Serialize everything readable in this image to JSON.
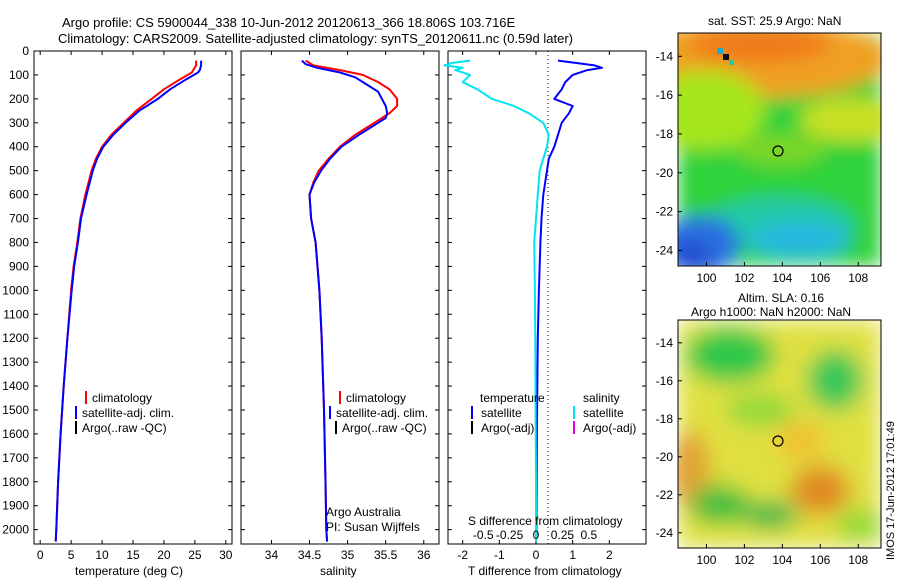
{
  "header": {
    "line1": "Argo profile: CS 5900044_338 10-Jun-2012 20120613_366 18.806S 103.716E",
    "line2": "Climatology: CARS2009. Satellite-adjusted climatology: synTS_20120611.nc (0.59d later)"
  },
  "side_stamp": "IMOS 17-Jun-2012 17:01:49",
  "colors": {
    "climatology": "#ff0000",
    "satellite": "#0000ff",
    "argo": "#000000",
    "cyan": "#00e5ee",
    "magenta": "#e000e0"
  },
  "depth_ticks": [
    0,
    100,
    200,
    300,
    400,
    500,
    600,
    700,
    800,
    900,
    1000,
    1100,
    1200,
    1300,
    1400,
    1500,
    1600,
    1700,
    1800,
    1900,
    2000
  ],
  "chart_data": [
    {
      "type": "line",
      "xlabel": "temperature (deg C)",
      "xlim": [
        -1,
        31
      ],
      "xticks": [
        0,
        5,
        10,
        15,
        20,
        25,
        30
      ],
      "ylim": [
        0,
        2060
      ],
      "legend": [
        "climatology",
        "satellite-adj. clim.",
        "Argo(..raw -QC)"
      ],
      "series": [
        {
          "name": "climatology",
          "color": "#ff0000",
          "depth": [
            40,
            60,
            90,
            120,
            160,
            200,
            250,
            300,
            350,
            400,
            450,
            500,
            600,
            700,
            800,
            900,
            1000,
            1200,
            1400,
            1600,
            1800,
            2000,
            2050
          ],
          "values": [
            25.2,
            25.2,
            24.5,
            22.5,
            20,
            18,
            15.5,
            13.5,
            11.5,
            10,
            9,
            8.3,
            7.3,
            6.5,
            6,
            5.4,
            5,
            4.4,
            3.8,
            3.3,
            2.9,
            2.6,
            2.5
          ]
        },
        {
          "name": "satellite-adj. clim.",
          "color": "#0000ff",
          "depth": [
            40,
            60,
            80,
            90,
            120,
            160,
            200,
            250,
            300,
            350,
            400,
            450,
            500,
            600,
            700,
            800,
            900,
            1000,
            1200,
            1400,
            1600,
            1800,
            2000,
            2050
          ],
          "values": [
            26,
            26,
            25.8,
            25.5,
            23.5,
            21,
            19,
            16,
            13.8,
            11.8,
            10.2,
            9.2,
            8.5,
            7.5,
            6.6,
            6.1,
            5.5,
            5.1,
            4.4,
            3.8,
            3.3,
            2.9,
            2.6,
            2.5
          ]
        }
      ]
    },
    {
      "type": "line",
      "xlabel": "salinity",
      "xlim": [
        33.6,
        36.2
      ],
      "xticks": [
        34,
        34.5,
        35,
        35.5,
        36
      ],
      "ylim": [
        0,
        2060
      ],
      "legend": [
        "climatology",
        "satellite-adj. clim.",
        "Argo(..raw -QC)"
      ],
      "annotations": [
        "Argo Australia",
        "PI: Susan Wijffels"
      ],
      "series": [
        {
          "name": "climatology",
          "color": "#ff0000",
          "depth": [
            40,
            60,
            80,
            100,
            130,
            160,
            200,
            230,
            260,
            300,
            350,
            400,
            450,
            500,
            550,
            600,
            700,
            800,
            1000,
            1200,
            1500,
            1800,
            2000,
            2050
          ],
          "values": [
            34.45,
            34.55,
            34.9,
            35.2,
            35.4,
            35.55,
            35.65,
            35.65,
            35.55,
            35.35,
            35.1,
            34.9,
            34.75,
            34.62,
            34.55,
            34.5,
            34.52,
            34.58,
            34.63,
            34.66,
            34.69,
            34.71,
            34.72,
            34.73
          ]
        },
        {
          "name": "satellite-adj. clim.",
          "color": "#0000ff",
          "depth": [
            40,
            55,
            70,
            90,
            110,
            140,
            170,
            200,
            230,
            260,
            280,
            300,
            350,
            400,
            450,
            500,
            550,
            600,
            700,
            800,
            1000,
            1200,
            1500,
            1800,
            2000,
            2050
          ],
          "values": [
            34.4,
            34.45,
            34.6,
            34.9,
            35.1,
            35.25,
            35.4,
            35.45,
            35.5,
            35.52,
            35.5,
            35.4,
            35.15,
            34.92,
            34.77,
            34.65,
            34.56,
            34.5,
            34.52,
            34.58,
            34.63,
            34.66,
            34.69,
            34.71,
            34.72,
            34.73
          ]
        }
      ]
    },
    {
      "type": "line",
      "xlabel": "T difference from climatology",
      "toplabel": "S difference from climatology",
      "xlim": [
        -2.4,
        3.0
      ],
      "xticks": [
        -2,
        -1,
        0,
        1,
        2
      ],
      "xticks_top": [
        -0.5,
        -0.25,
        0,
        0.25,
        0.5
      ],
      "ylim": [
        0,
        2060
      ],
      "legend": {
        "temperature": "temperature",
        "salinity": "salinity",
        "satellite": "satellite",
        "argo": "Argo(-adj)"
      },
      "series": [
        {
          "name": "temperature satellite",
          "color": "#0000ff",
          "depth": [
            40,
            60,
            70,
            80,
            100,
            130,
            160,
            200,
            230,
            260,
            300,
            350,
            400,
            450,
            500,
            600,
            700,
            800,
            1000,
            1200,
            1500,
            1800,
            2000,
            2050
          ],
          "values": [
            0.6,
            1.6,
            1.8,
            1.4,
            1.0,
            0.8,
            0.7,
            0.5,
            1.0,
            0.9,
            0.7,
            0.6,
            0.5,
            0.35,
            0.3,
            0.2,
            0.15,
            0.12,
            0.08,
            0.05,
            0.03,
            0.02,
            0.01,
            0.0
          ]
        },
        {
          "name": "salinity satellite",
          "color": "#00e5ee",
          "depth": [
            40,
            50,
            60,
            70,
            80,
            100,
            130,
            160,
            200,
            230,
            260,
            300,
            350,
            400,
            450,
            500,
            600,
            700,
            800,
            1000,
            1200,
            1500,
            1800,
            2000,
            2050
          ],
          "values": [
            -1.8,
            -2.3,
            -2.5,
            -2.0,
            -2.2,
            -1.8,
            -2.0,
            -1.6,
            -1.2,
            -0.6,
            -0.2,
            0.2,
            0.35,
            0.3,
            0.2,
            0.1,
            0.05,
            0.0,
            -0.05,
            -0.03,
            -0.02,
            -0.01,
            0.0,
            0.0,
            0.0
          ]
        }
      ]
    },
    {
      "type": "heatmap",
      "title": "sat. SST: 25.9  Argo: NaN",
      "xticks": [
        100,
        102,
        104,
        106,
        108
      ],
      "yticks": [
        -14,
        -16,
        -18,
        -20,
        -22,
        -24
      ],
      "xlim": [
        98.5,
        109.2
      ],
      "ylim": [
        -24.8,
        -12.8
      ],
      "marker": {
        "lon": 103.716,
        "lat": -18.806
      }
    },
    {
      "type": "heatmap",
      "title": "Altim. SLA: 0.16",
      "subtitle": "Argo h1000: NaN h2000: NaN",
      "xticks": [
        100,
        102,
        104,
        106,
        108
      ],
      "yticks": [
        -14,
        -16,
        -18,
        -20,
        -22,
        -24
      ],
      "xlim": [
        98.5,
        109.2
      ],
      "ylim": [
        -24.8,
        -12.8
      ],
      "marker": {
        "lon": 103.716,
        "lat": -18.806
      }
    }
  ]
}
